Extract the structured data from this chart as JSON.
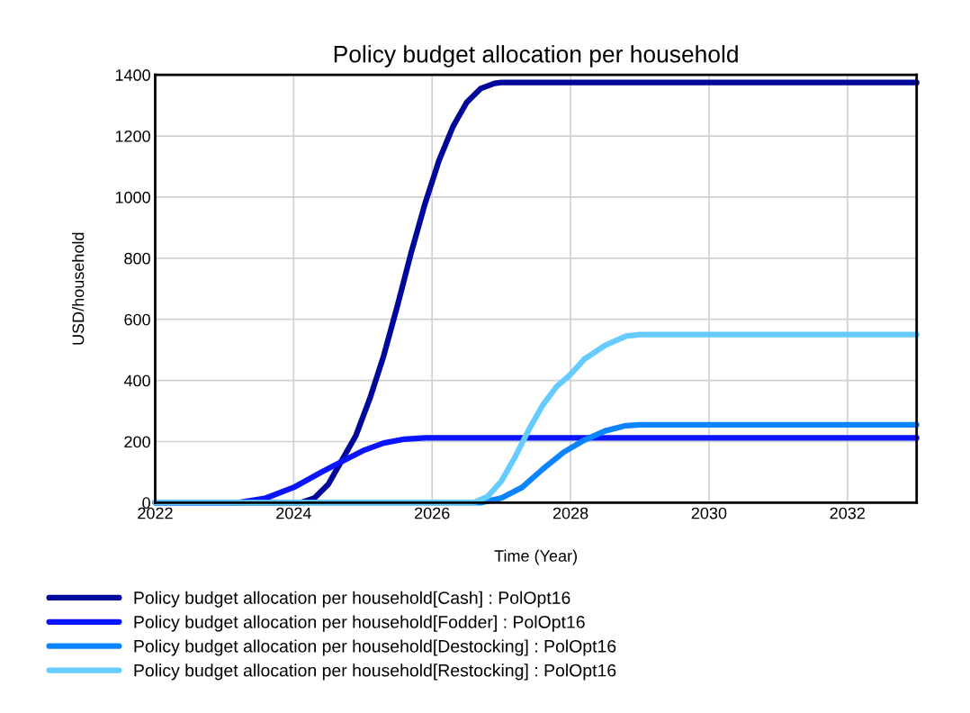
{
  "chart_data": {
    "type": "line",
    "title": "Policy budget allocation per household",
    "xlabel": "Time (Year)",
    "ylabel": "USD/household",
    "xlim": [
      2022,
      2033
    ],
    "xticks": [
      2022,
      2024,
      2026,
      2028,
      2030,
      2032
    ],
    "ylim": [
      0,
      1400
    ],
    "yticks": [
      0,
      200,
      400,
      600,
      800,
      1000,
      1200,
      1400
    ],
    "grid": true,
    "legend": "bottom",
    "marker": "none",
    "line_style": "solid",
    "series": [
      {
        "name": "Policy budget allocation per household[Cash] : PolOpt16",
        "color": "#00089a",
        "x": [
          2022,
          2024.1,
          2024.3,
          2024.5,
          2024.7,
          2024.9,
          2025.1,
          2025.3,
          2025.5,
          2025.7,
          2025.9,
          2026.1,
          2026.3,
          2026.5,
          2026.7,
          2026.9,
          2027,
          2033
        ],
        "values": [
          0,
          0,
          15,
          60,
          140,
          220,
          340,
          480,
          645,
          820,
          980,
          1120,
          1230,
          1310,
          1355,
          1372,
          1375,
          1375
        ]
      },
      {
        "name": "Policy budget allocation per household[Fodder] : PolOpt16",
        "color": "#0a14ff",
        "x": [
          2022,
          2023.2,
          2023.6,
          2024,
          2024.4,
          2024.7,
          2025,
          2025.3,
          2025.6,
          2025.9,
          2026.1,
          2033
        ],
        "values": [
          0,
          0,
          15,
          50,
          100,
          135,
          170,
          195,
          208,
          212,
          212,
          212
        ]
      },
      {
        "name": "Policy budget allocation per household[Destocking] : PolOpt16",
        "color": "#0a84ff",
        "x": [
          2022,
          2026.7,
          2027,
          2027.3,
          2027.6,
          2027.9,
          2028.2,
          2028.5,
          2028.8,
          2029,
          2033
        ],
        "values": [
          0,
          0,
          15,
          50,
          110,
          165,
          205,
          235,
          252,
          255,
          255
        ]
      },
      {
        "name": "Policy budget allocation per household[Restocking] : PolOpt16",
        "color": "#66ccff",
        "x": [
          2022,
          2026.6,
          2026.8,
          2027,
          2027.2,
          2027.4,
          2027.6,
          2027.8,
          2028,
          2028.2,
          2028.5,
          2028.8,
          2029,
          2033
        ],
        "values": [
          0,
          0,
          20,
          70,
          150,
          240,
          320,
          380,
          420,
          470,
          515,
          545,
          550,
          550
        ]
      }
    ]
  }
}
